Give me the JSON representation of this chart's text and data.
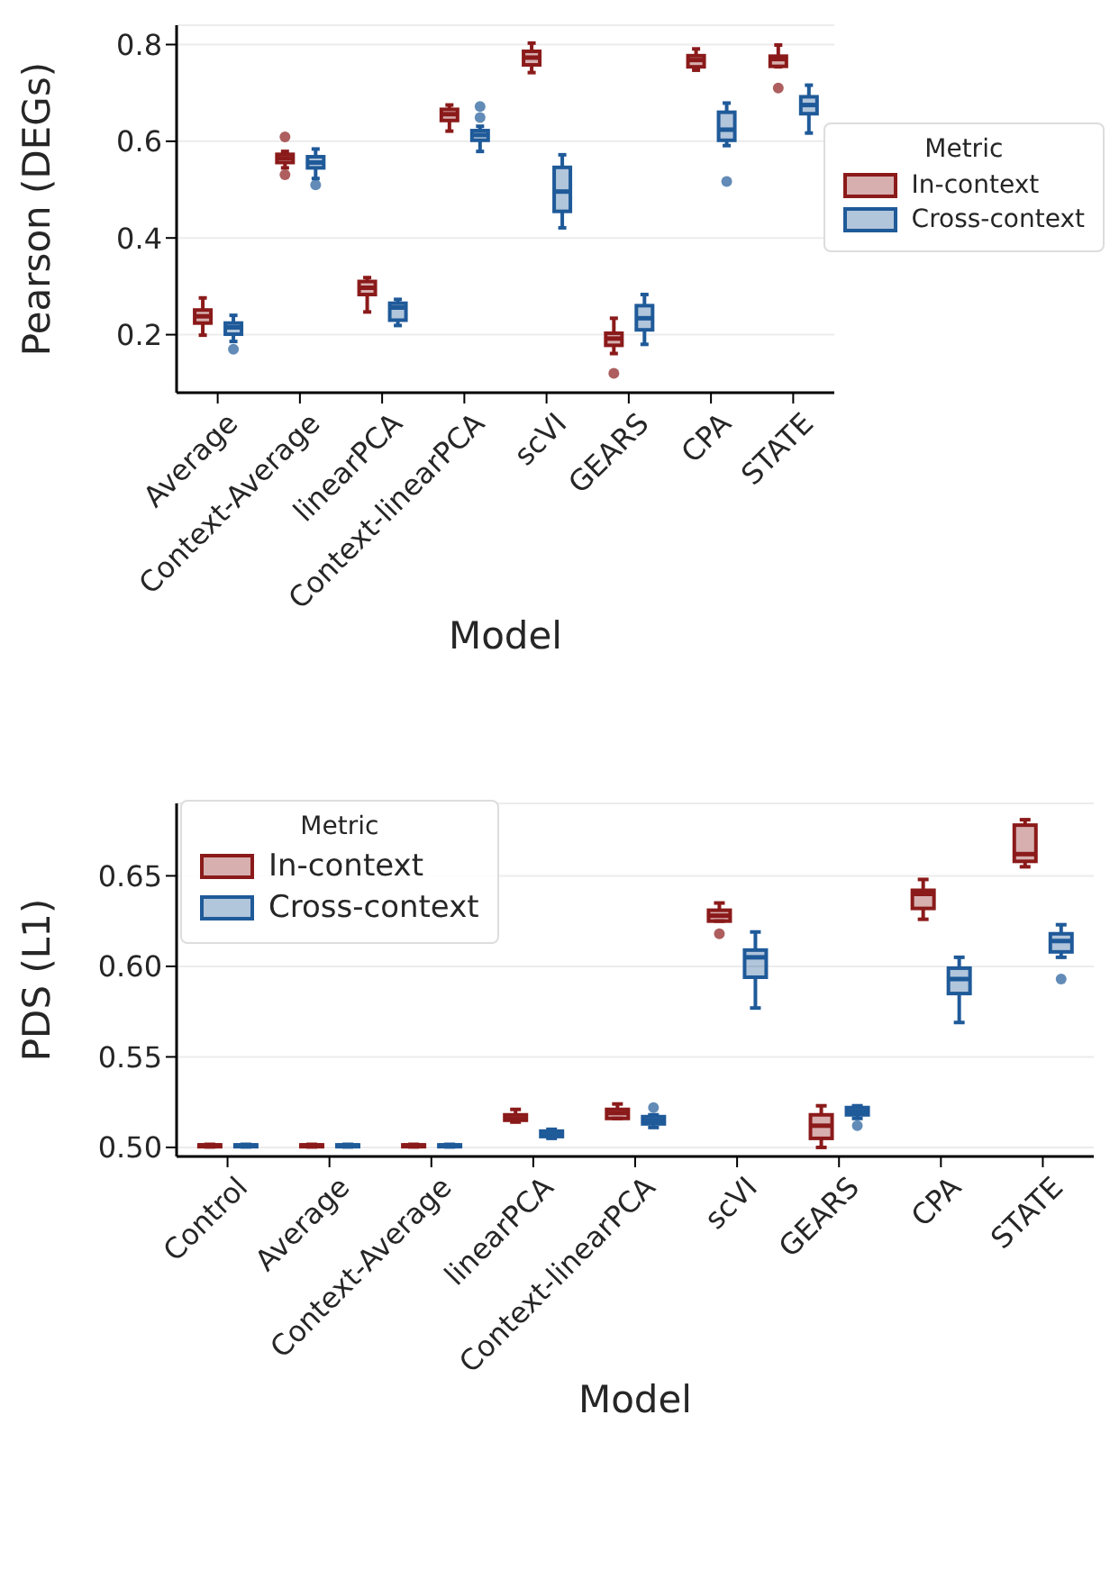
{
  "chart_data": [
    {
      "type": "box",
      "xlabel": "Model",
      "ylabel": "Pearson (DEGs)",
      "legend_title": "Metric",
      "legend": "right",
      "grid": "y",
      "categories": [
        "Average",
        "Context-Average",
        "linearPCA",
        "Context-linearPCA",
        "scVI",
        "GEARS",
        "CPA",
        "STATE"
      ],
      "ylim": [
        0.08,
        0.84
      ],
      "yticks": [
        0.2,
        0.4,
        0.6,
        0.8
      ],
      "series": [
        {
          "name": "In-context",
          "color": "#8b1a1a",
          "boxes": [
            {
              "low": 0.199,
              "q1": 0.224,
              "median": 0.238,
              "q3": 0.251,
              "high": 0.276
            },
            {
              "low": 0.545,
              "q1": 0.556,
              "median": 0.565,
              "q3": 0.573,
              "high": 0.579,
              "outliers": [
                0.609,
                0.531
              ]
            },
            {
              "low": 0.247,
              "q1": 0.283,
              "median": 0.297,
              "q3": 0.31,
              "high": 0.318
            },
            {
              "low": 0.621,
              "q1": 0.643,
              "median": 0.656,
              "q3": 0.666,
              "high": 0.675
            },
            {
              "low": 0.742,
              "q1": 0.758,
              "median": 0.773,
              "q3": 0.786,
              "high": 0.803
            },
            {
              "low": 0.161,
              "q1": 0.178,
              "median": 0.192,
              "q3": 0.203,
              "high": 0.234,
              "outliers": [
                0.12
              ]
            },
            {
              "low": 0.747,
              "q1": 0.754,
              "median": 0.768,
              "q3": 0.777,
              "high": 0.791
            },
            {
              "low": 0.754,
              "q1": 0.755,
              "median": 0.77,
              "q3": 0.776,
              "high": 0.799,
              "outliers": [
                0.71
              ]
            }
          ]
        },
        {
          "name": "Cross-context",
          "color": "#1f5a99",
          "boxes": [
            {
              "low": 0.186,
              "q1": 0.201,
              "median": 0.215,
              "q3": 0.224,
              "high": 0.24,
              "outliers": [
                0.17
              ]
            },
            {
              "low": 0.523,
              "q1": 0.545,
              "median": 0.556,
              "q3": 0.568,
              "high": 0.584,
              "outliers": [
                0.51
              ]
            },
            {
              "low": 0.219,
              "q1": 0.23,
              "median": 0.256,
              "q3": 0.265,
              "high": 0.273
            },
            {
              "low": 0.579,
              "q1": 0.602,
              "median": 0.613,
              "q3": 0.622,
              "high": 0.631,
              "outliers": [
                0.672,
                0.649
              ]
            },
            {
              "low": 0.421,
              "q1": 0.455,
              "median": 0.496,
              "q3": 0.546,
              "high": 0.572
            },
            {
              "low": 0.18,
              "q1": 0.21,
              "median": 0.234,
              "q3": 0.26,
              "high": 0.283
            },
            {
              "low": 0.591,
              "q1": 0.602,
              "median": 0.624,
              "q3": 0.66,
              "high": 0.679,
              "outliers": [
                0.517
              ]
            },
            {
              "low": 0.617,
              "q1": 0.657,
              "median": 0.675,
              "q3": 0.692,
              "high": 0.716
            }
          ]
        }
      ]
    },
    {
      "type": "box",
      "xlabel": "Model",
      "ylabel": "PDS (L1)",
      "legend_title": "Metric",
      "legend": "top left",
      "grid": "y",
      "categories": [
        "Control",
        "Average",
        "Context-Average",
        "linearPCA",
        "Context-linearPCA",
        "scVI",
        "GEARS",
        "CPA",
        "STATE"
      ],
      "ylim": [
        0.495,
        0.69
      ],
      "yticks": [
        {
          "value": 0.5,
          "label": "0.50"
        },
        0.55,
        {
          "value": 0.6,
          "label": "0.60"
        },
        0.65
      ],
      "series": [
        {
          "name": "In-context",
          "color": "#8b1a1a",
          "boxes": [
            {
              "low": 0.5003,
              "q1": 0.5006,
              "median": 0.501,
              "q3": 0.5014,
              "high": 0.5017
            },
            {
              "low": 0.5003,
              "q1": 0.5006,
              "median": 0.501,
              "q3": 0.5014,
              "high": 0.5017
            },
            {
              "low": 0.5003,
              "q1": 0.5006,
              "median": 0.501,
              "q3": 0.5014,
              "high": 0.5017
            },
            {
              "low": 0.514,
              "q1": 0.515,
              "median": 0.516,
              "q3": 0.518,
              "high": 0.521
            },
            {
              "low": 0.516,
              "q1": 0.516,
              "median": 0.519,
              "q3": 0.521,
              "high": 0.524
            },
            {
              "low": 0.625,
              "q1": 0.625,
              "median": 0.628,
              "q3": 0.631,
              "high": 0.635,
              "outliers": [
                0.618
              ]
            },
            {
              "low": 0.5,
              "q1": 0.505,
              "median": 0.512,
              "q3": 0.518,
              "high": 0.523
            },
            {
              "low": 0.626,
              "q1": 0.632,
              "median": 0.64,
              "q3": 0.642,
              "high": 0.648
            },
            {
              "low": 0.655,
              "q1": 0.658,
              "median": 0.662,
              "q3": 0.678,
              "high": 0.681
            }
          ]
        },
        {
          "name": "Cross-context",
          "color": "#1f5a99",
          "boxes": [
            {
              "low": 0.5003,
              "q1": 0.5006,
              "median": 0.501,
              "q3": 0.5014,
              "high": 0.5017
            },
            {
              "low": 0.5003,
              "q1": 0.5006,
              "median": 0.501,
              "q3": 0.5014,
              "high": 0.5017
            },
            {
              "low": 0.5003,
              "q1": 0.5006,
              "median": 0.501,
              "q3": 0.5014,
              "high": 0.5017
            },
            {
              "low": 0.505,
              "q1": 0.506,
              "median": 0.508,
              "q3": 0.509,
              "high": 0.51
            },
            {
              "low": 0.511,
              "q1": 0.513,
              "median": 0.515,
              "q3": 0.517,
              "high": 0.518,
              "outliers": [
                0.522
              ]
            },
            {
              "low": 0.577,
              "q1": 0.594,
              "median": 0.605,
              "q3": 0.609,
              "high": 0.619
            },
            {
              "low": 0.516,
              "q1": 0.518,
              "median": 0.52,
              "q3": 0.522,
              "high": 0.523,
              "outliers": [
                0.512
              ]
            },
            {
              "low": 0.569,
              "q1": 0.585,
              "median": 0.593,
              "q3": 0.599,
              "high": 0.605
            },
            {
              "low": 0.605,
              "q1": 0.608,
              "median": 0.614,
              "q3": 0.618,
              "high": 0.623,
              "outliers": [
                0.593
              ]
            }
          ]
        }
      ]
    }
  ]
}
